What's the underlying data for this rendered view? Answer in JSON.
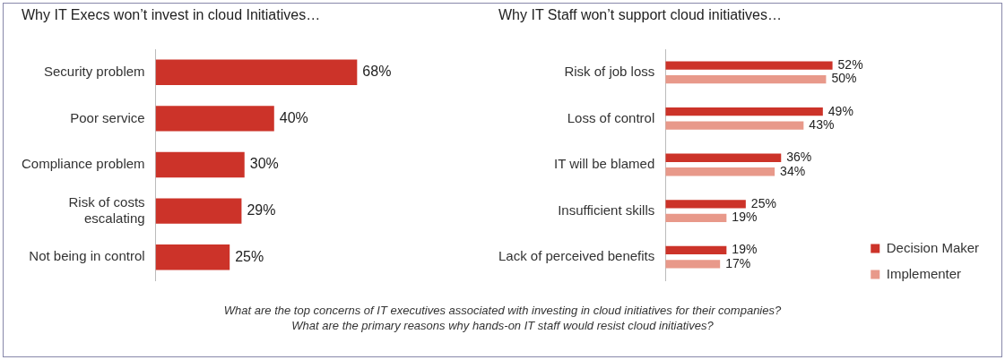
{
  "chart_data": [
    {
      "type": "bar",
      "orientation": "horizontal",
      "title": "Why IT Execs won’t invest in cloud Initiatives…",
      "categories": [
        "Security problem",
        "Poor service",
        "Compliance problem",
        "Risk of costs escalating",
        "Not being in control"
      ],
      "values": [
        68,
        40,
        30,
        29,
        25
      ],
      "color": "#cc3329",
      "value_labels": [
        "68%",
        "40%",
        "30%",
        "29%",
        "25%"
      ],
      "legend": false,
      "annotations": [
        "What are the top concerns of IT executives associated with investing in cloud initiatives for their companies?",
        "What are the primary reasons why hands-on IT staff would resist cloud initiatives?"
      ]
    },
    {
      "type": "bar",
      "orientation": "horizontal",
      "title": "Why IT Staff won’t support cloud initiatives…",
      "categories": [
        "Risk of job loss",
        "Loss of control",
        "IT will be blamed",
        "Insufficient skills",
        "Lack of perceived benefits"
      ],
      "series": [
        {
          "name": "Decision Maker",
          "color": "#cc3329",
          "values": [
            52,
            49,
            36,
            25,
            19
          ],
          "value_labels": [
            "52%",
            "49%",
            "36%",
            "25%",
            "19%"
          ]
        },
        {
          "name": "Implementer",
          "color": "#e8998a",
          "values": [
            50,
            43,
            34,
            19,
            17
          ],
          "value_labels": [
            "50%",
            "43%",
            "34%",
            "19%",
            "17%"
          ]
        }
      ],
      "legend": "right"
    }
  ]
}
